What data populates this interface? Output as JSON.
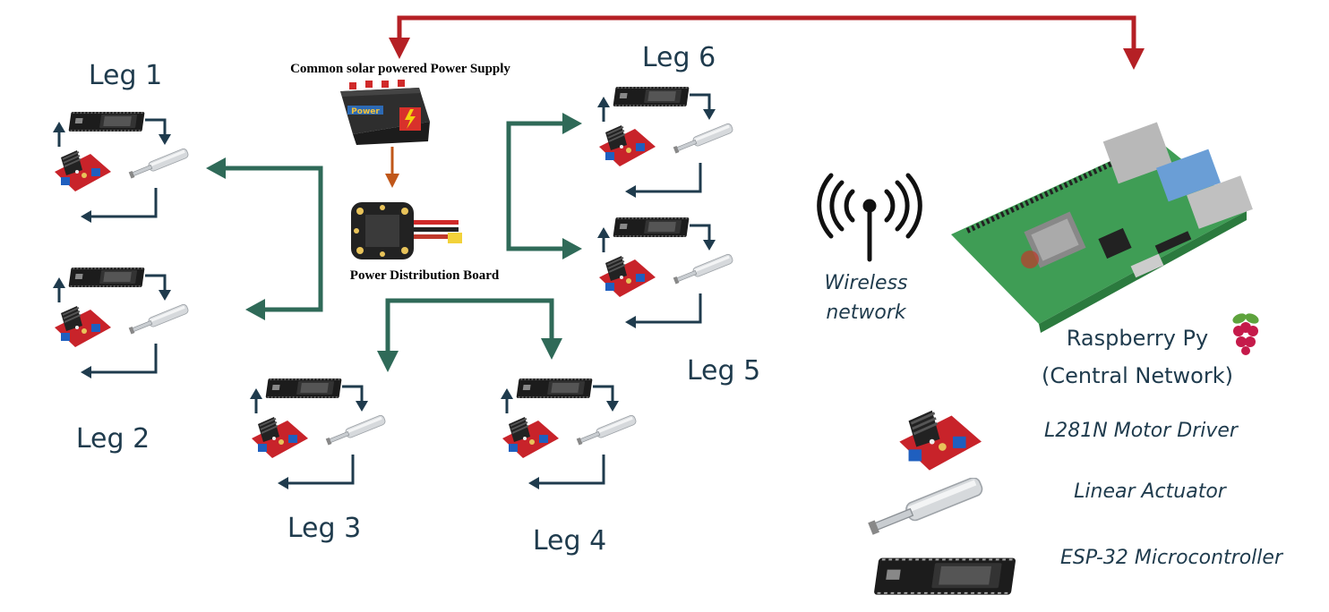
{
  "power": {
    "supply_label": "Common solar powered Power Supply",
    "battery_text": "Power",
    "pdb_label": "Power Distribution Board"
  },
  "legs": [
    {
      "label": "Leg 1"
    },
    {
      "label": "Leg 2"
    },
    {
      "label": "Leg 3"
    },
    {
      "label": "Leg 4"
    },
    {
      "label": "Leg 5"
    },
    {
      "label": "Leg 6"
    }
  ],
  "wireless": {
    "line1": "Wireless",
    "line2": "network"
  },
  "rpi": {
    "line1": "Raspberry Py",
    "line2": "(Central Network)"
  },
  "legend": {
    "motor_driver": "L281N Motor Driver",
    "actuator": "Linear Actuator",
    "esp32": "ESP-32 Microcontroller"
  },
  "colors": {
    "arrow_red": "#b52025",
    "arrow_green": "#2f6a58",
    "arrow_orange": "#c0571a",
    "loop_arrow": "#1f3b4d",
    "label_text": "#1f3b4d",
    "pcb_green": "#3f9d55",
    "driver_red": "#c8232a"
  }
}
